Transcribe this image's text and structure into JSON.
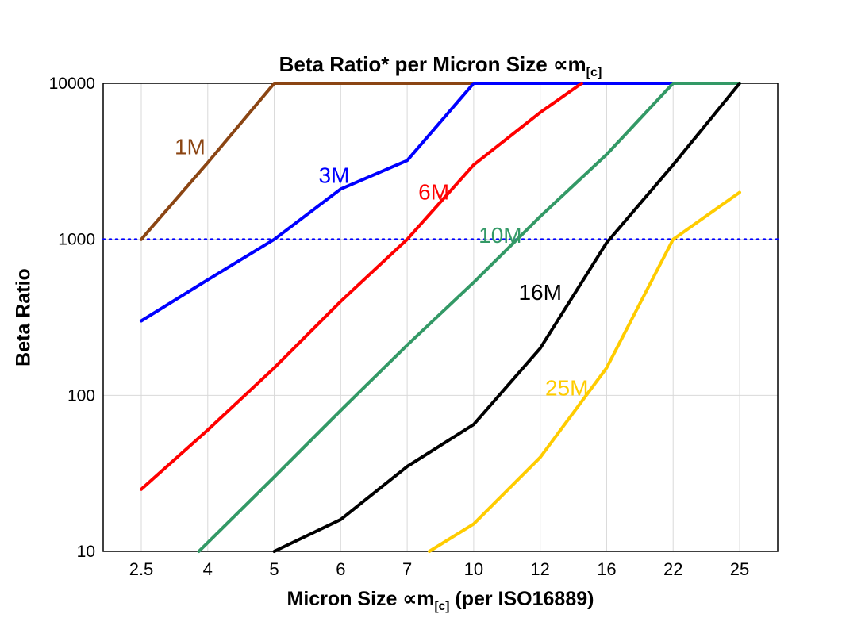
{
  "chart_data": {
    "type": "line",
    "title_pre": "Beta Ratio* per Micron Size ∝m",
    "title_sub": "[c]",
    "ylabel": "Beta Ratio",
    "xlabel_pre": "Micron Size ∝m",
    "xlabel_sub": "[c]",
    "xlabel_post": " (per ISO16889)",
    "y_scale": "log",
    "ylim": [
      10,
      10000
    ],
    "y_ticks": [
      10,
      100,
      1000,
      10000
    ],
    "y_tick_labels": [
      "10",
      "100",
      "1000",
      "10000"
    ],
    "categories": [
      2.5,
      4,
      5,
      6,
      7,
      10,
      12,
      16,
      22,
      25
    ],
    "category_labels": [
      "2.5",
      "4",
      "5",
      "6",
      "7",
      "10",
      "12",
      "16",
      "22",
      "25"
    ],
    "grid": true,
    "grid_color": "#d9d9d9",
    "axis_color": "#000000",
    "threshold_line": {
      "value": 1000,
      "color": "#0000ff",
      "style": "dotted"
    },
    "series": [
      {
        "name": "1M",
        "color": "#8B4513",
        "label": {
          "x": 3.6,
          "y": 3500
        },
        "points": [
          [
            2.5,
            1000
          ],
          [
            4,
            3100
          ],
          [
            5,
            10000
          ],
          [
            10,
            10000
          ]
        ]
      },
      {
        "name": "3M",
        "color": "#0000FF",
        "label": {
          "x": 5.9,
          "y": 2300
        },
        "points": [
          [
            2.5,
            300
          ],
          [
            4,
            550
          ],
          [
            5,
            1000
          ],
          [
            6,
            2100
          ],
          [
            7,
            3200
          ],
          [
            10,
            10000
          ],
          [
            22,
            10000
          ]
        ]
      },
      {
        "name": "6M",
        "color": "#FF0000",
        "label": {
          "x": 8.2,
          "y": 1800
        },
        "points": [
          [
            2.5,
            25
          ],
          [
            4,
            60
          ],
          [
            5,
            150
          ],
          [
            6,
            400
          ],
          [
            7,
            1000
          ],
          [
            10,
            3000
          ],
          [
            12,
            6500
          ],
          [
            14.5,
            10000
          ]
        ]
      },
      {
        "name": "10M",
        "color": "#339966",
        "label": {
          "x": 10.8,
          "y": 950
        },
        "points": [
          [
            3.8,
            10
          ],
          [
            5,
            30
          ],
          [
            6,
            80
          ],
          [
            7,
            210
          ],
          [
            10,
            530
          ],
          [
            12,
            1400
          ],
          [
            16,
            3500
          ],
          [
            22,
            10000
          ],
          [
            25,
            10000
          ]
        ]
      },
      {
        "name": "16M",
        "color": "#000000",
        "label": {
          "x": 12.0,
          "y": 410
        },
        "points": [
          [
            5,
            10
          ],
          [
            6,
            16
          ],
          [
            7,
            35
          ],
          [
            10,
            65
          ],
          [
            12,
            200
          ],
          [
            16,
            950
          ],
          [
            22,
            3000
          ],
          [
            25,
            10000
          ]
        ]
      },
      {
        "name": "25M",
        "color": "#FFCC00",
        "label": {
          "x": 13.6,
          "y": 100
        },
        "points": [
          [
            8,
            10
          ],
          [
            10,
            15
          ],
          [
            12,
            40
          ],
          [
            16,
            150
          ],
          [
            22,
            1000
          ],
          [
            25,
            2000
          ]
        ]
      }
    ]
  }
}
